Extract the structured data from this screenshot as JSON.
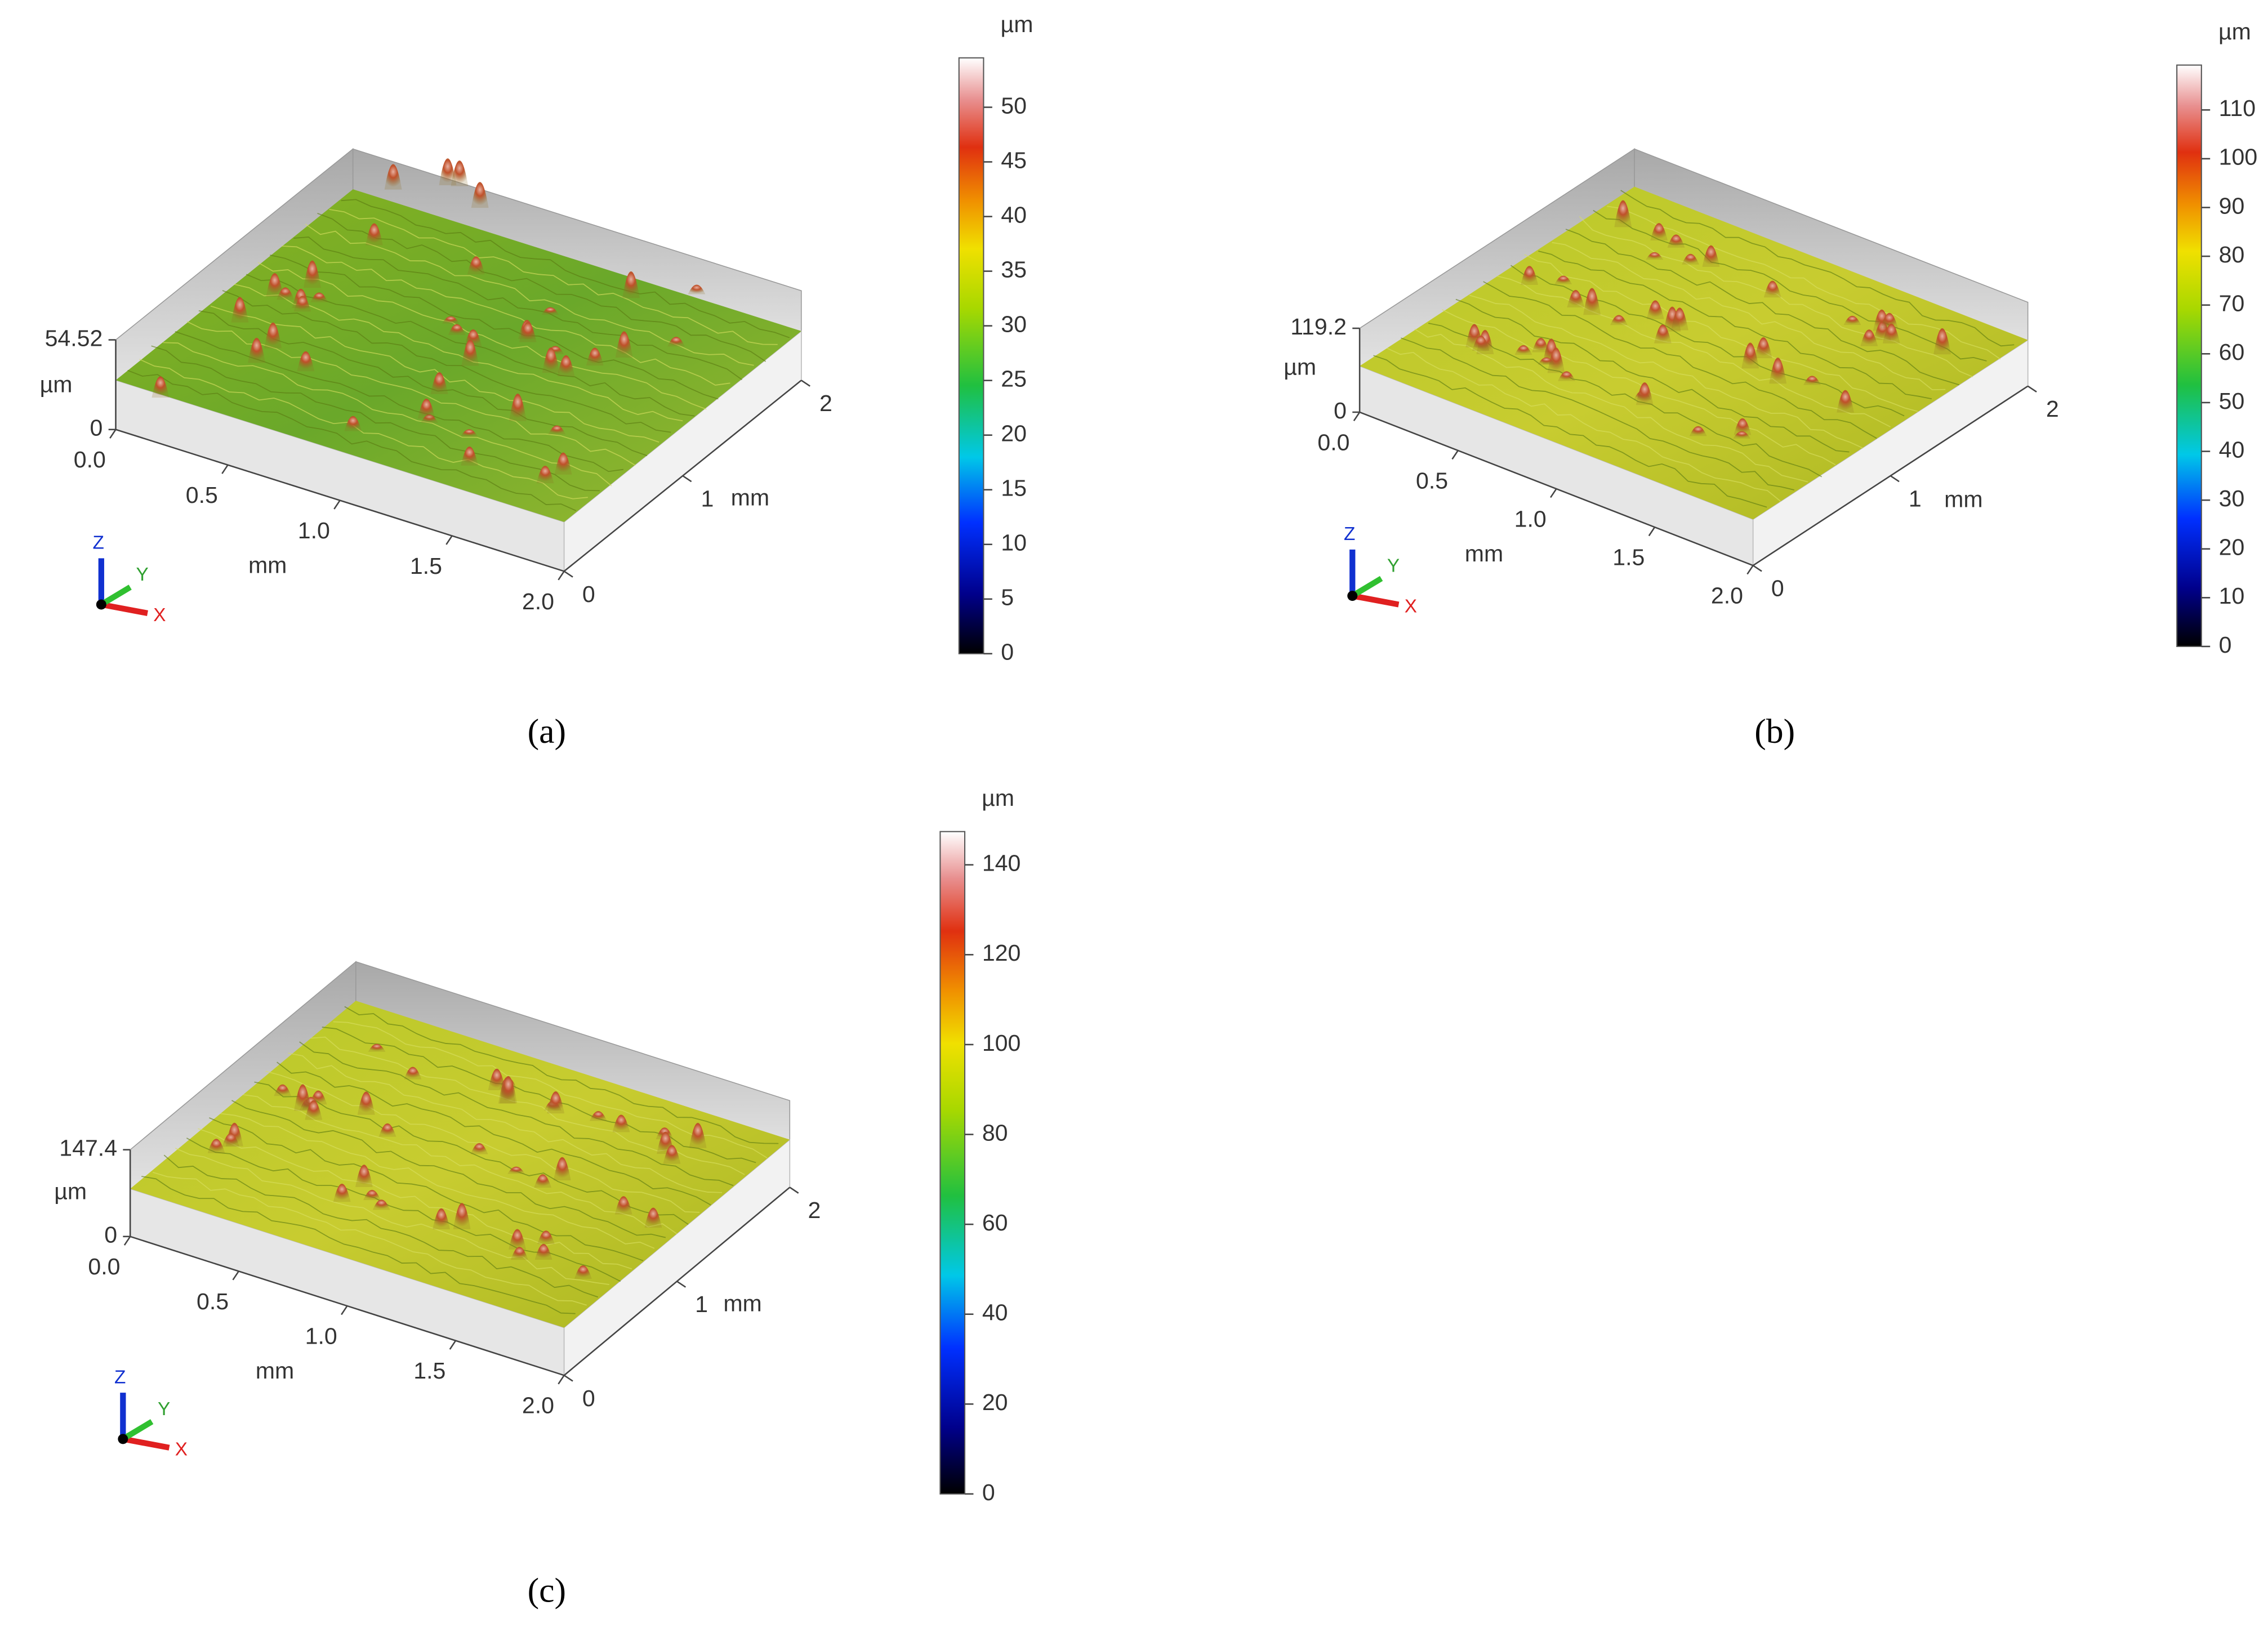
{
  "chart_data": [
    {
      "type": "surface3d",
      "label": "(a)",
      "x_label": "mm",
      "y_label": "mm",
      "z_label": "µm",
      "colorbar_label": "µm",
      "xlim": [
        0,
        2
      ],
      "xticks": [
        {
          "value": 0,
          "label": "0.0"
        },
        0.5,
        {
          "value": 1,
          "label": "1.0"
        },
        1.5,
        {
          "value": 2,
          "label": "2.0"
        }
      ],
      "ylim": [
        0,
        2
      ],
      "yticks": [
        0,
        1,
        2
      ],
      "zlim": [
        0,
        54.52
      ],
      "zticks": [
        0,
        54.52
      ],
      "colorbar_lim": [
        0,
        54.52
      ],
      "colorbar_ticks": [
        0,
        5,
        10,
        15,
        20,
        25,
        30,
        35,
        40,
        45,
        50
      ],
      "axis_triad": {
        "x": "X",
        "y": "Y",
        "z": "Z"
      }
    },
    {
      "type": "surface3d",
      "label": "(b)",
      "x_label": "mm",
      "y_label": "mm",
      "z_label": "µm",
      "colorbar_label": "µm",
      "xlim": [
        0,
        2
      ],
      "xticks": [
        {
          "value": 0,
          "label": "0.0"
        },
        0.5,
        {
          "value": 1,
          "label": "1.0"
        },
        1.5,
        {
          "value": 2,
          "label": "2.0"
        }
      ],
      "ylim": [
        0,
        2
      ],
      "yticks": [
        0,
        1,
        2
      ],
      "zlim": [
        0,
        119.2
      ],
      "zticks": [
        0,
        119.2
      ],
      "colorbar_lim": [
        0,
        119.2
      ],
      "colorbar_ticks": [
        0,
        10,
        20,
        30,
        40,
        50,
        60,
        70,
        80,
        90,
        100,
        110
      ],
      "axis_triad": {
        "x": "X",
        "y": "Y",
        "z": "Z"
      }
    },
    {
      "type": "surface3d",
      "label": "(c)",
      "x_label": "mm",
      "y_label": "mm",
      "z_label": "µm",
      "colorbar_label": "µm",
      "xlim": [
        0,
        2
      ],
      "xticks": [
        {
          "value": 0,
          "label": "0.0"
        },
        0.5,
        {
          "value": 1,
          "label": "1.0"
        },
        1.5,
        {
          "value": 2,
          "label": "2.0"
        }
      ],
      "ylim": [
        0,
        2
      ],
      "yticks": [
        0,
        1,
        2
      ],
      "zlim": [
        0,
        147.4
      ],
      "zticks": [
        0,
        147.4
      ],
      "colorbar_lim": [
        0,
        147.4
      ],
      "colorbar_ticks": [
        0,
        20,
        40,
        60,
        80,
        100,
        120,
        140
      ],
      "axis_triad": {
        "x": "X",
        "y": "Y",
        "z": "Z"
      }
    }
  ]
}
